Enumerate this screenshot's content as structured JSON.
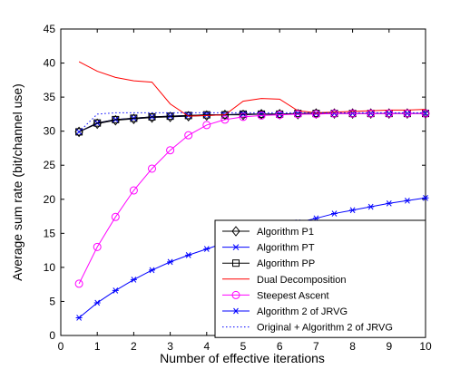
{
  "chart_data": {
    "type": "line",
    "xlabel": "Number of effective iterations",
    "ylabel": "Average sum rate (bit/channel use)",
    "xlim": [
      0,
      10
    ],
    "ylim": [
      0,
      45
    ],
    "xticks": [
      0,
      1,
      2,
      3,
      4,
      5,
      6,
      7,
      8,
      9,
      10
    ],
    "yticks": [
      0,
      5,
      10,
      15,
      20,
      25,
      30,
      35,
      40,
      45
    ],
    "grid": false,
    "legend_position": "bottom-right",
    "series": [
      {
        "name": "Algorithm P1",
        "color": "#000000",
        "marker": "diamond",
        "dash": "solid",
        "x": [
          0.5,
          1,
          1.5,
          2,
          2.5,
          3,
          3.5,
          4,
          4.5,
          5,
          5.5,
          6,
          6.5,
          7,
          7.5,
          8,
          8.5,
          9,
          9.5,
          10
        ],
        "y": [
          29.9,
          31.1,
          31.6,
          31.8,
          32.0,
          32.1,
          32.2,
          32.3,
          32.4,
          32.4,
          32.5,
          32.5,
          32.5,
          32.6,
          32.6,
          32.6,
          32.6,
          32.6,
          32.6,
          32.6
        ]
      },
      {
        "name": "Algorithm PT",
        "color": "#0000ff",
        "marker": "x",
        "dash": "solid",
        "x": [
          0.5,
          1,
          1.5,
          2,
          2.5,
          3,
          3.5,
          4,
          4.5,
          5,
          5.5,
          6,
          6.5,
          7,
          7.5,
          8,
          8.5,
          9,
          9.5,
          10
        ],
        "y": [
          29.9,
          31.2,
          31.7,
          31.9,
          32.1,
          32.2,
          32.3,
          32.4,
          32.4,
          32.5,
          32.5,
          32.5,
          32.6,
          32.6,
          32.6,
          32.6,
          32.6,
          32.6,
          32.6,
          32.6
        ]
      },
      {
        "name": "Algorithm PP",
        "color": "#000000",
        "marker": "square",
        "dash": "solid",
        "x": [
          0.5,
          1,
          1.5,
          2,
          2.5,
          3,
          3.5,
          4,
          4.5,
          5,
          5.5,
          6,
          6.5,
          7,
          7.5,
          8,
          8.5,
          9,
          9.5,
          10
        ],
        "y": [
          29.9,
          31.2,
          31.7,
          31.9,
          32.1,
          32.2,
          32.3,
          32.4,
          32.4,
          32.5,
          32.5,
          32.5,
          32.6,
          32.6,
          32.6,
          32.6,
          32.6,
          32.6,
          32.6,
          32.6
        ]
      },
      {
        "name": "Dual Decomposition",
        "color": "#ff0000",
        "marker": "none",
        "dash": "solid",
        "x": [
          0.5,
          1,
          1.5,
          2,
          2.5,
          3,
          3.5,
          4,
          4.5,
          5,
          5.5,
          6,
          6.5,
          7,
          7.5,
          8,
          8.5,
          9,
          9.5,
          10
        ],
        "y": [
          40.2,
          38.8,
          37.9,
          37.4,
          37.2,
          34.0,
          32.2,
          32.3,
          32.4,
          34.4,
          34.8,
          34.7,
          33.0,
          32.7,
          32.8,
          32.9,
          33.0,
          33.1,
          33.1,
          33.2
        ]
      },
      {
        "name": "Steepest Ascent",
        "color": "#ff00ff",
        "marker": "circle",
        "dash": "solid",
        "x": [
          0.5,
          1,
          1.5,
          2,
          2.5,
          3,
          3.5,
          4,
          4.5,
          5,
          5.5,
          6,
          6.5,
          7,
          7.5,
          8,
          8.5,
          9,
          9.5,
          10
        ],
        "y": [
          7.6,
          13.0,
          17.4,
          21.3,
          24.5,
          27.2,
          29.4,
          30.9,
          31.7,
          32.1,
          32.3,
          32.4,
          32.5,
          32.5,
          32.6,
          32.6,
          32.6,
          32.6,
          32.6,
          32.6
        ]
      },
      {
        "name": "Algorithm 2 of JRVG",
        "color": "#0000ff",
        "marker": "asterisk",
        "dash": "solid",
        "x": [
          0.5,
          1,
          1.5,
          2,
          2.5,
          3,
          3.5,
          4,
          4.5,
          5,
          5.5,
          6,
          6.5,
          7,
          7.5,
          8,
          8.5,
          9,
          9.5,
          10
        ],
        "y": [
          2.6,
          4.8,
          6.6,
          8.2,
          9.6,
          10.8,
          11.8,
          12.7,
          13.6,
          14.4,
          15.2,
          15.9,
          16.6,
          17.2,
          17.9,
          18.4,
          18.9,
          19.4,
          19.8,
          20.2
        ]
      },
      {
        "name": "Original + Algorithm 2 of JRVG",
        "color": "#0000ff",
        "marker": "none",
        "dash": "dotted",
        "x": [
          0.5,
          1,
          1.5,
          2,
          2.5,
          3,
          3.5,
          4,
          4.5,
          5,
          5.5,
          6,
          6.5,
          7,
          7.5,
          8,
          8.5,
          9,
          9.5,
          10
        ],
        "y": [
          29.9,
          32.5,
          32.7,
          32.7,
          32.7,
          32.7,
          32.7,
          32.7,
          32.7,
          32.7,
          32.7,
          32.7,
          32.7,
          32.7,
          32.7,
          32.7,
          32.7,
          32.7,
          32.7,
          32.7
        ]
      }
    ]
  }
}
